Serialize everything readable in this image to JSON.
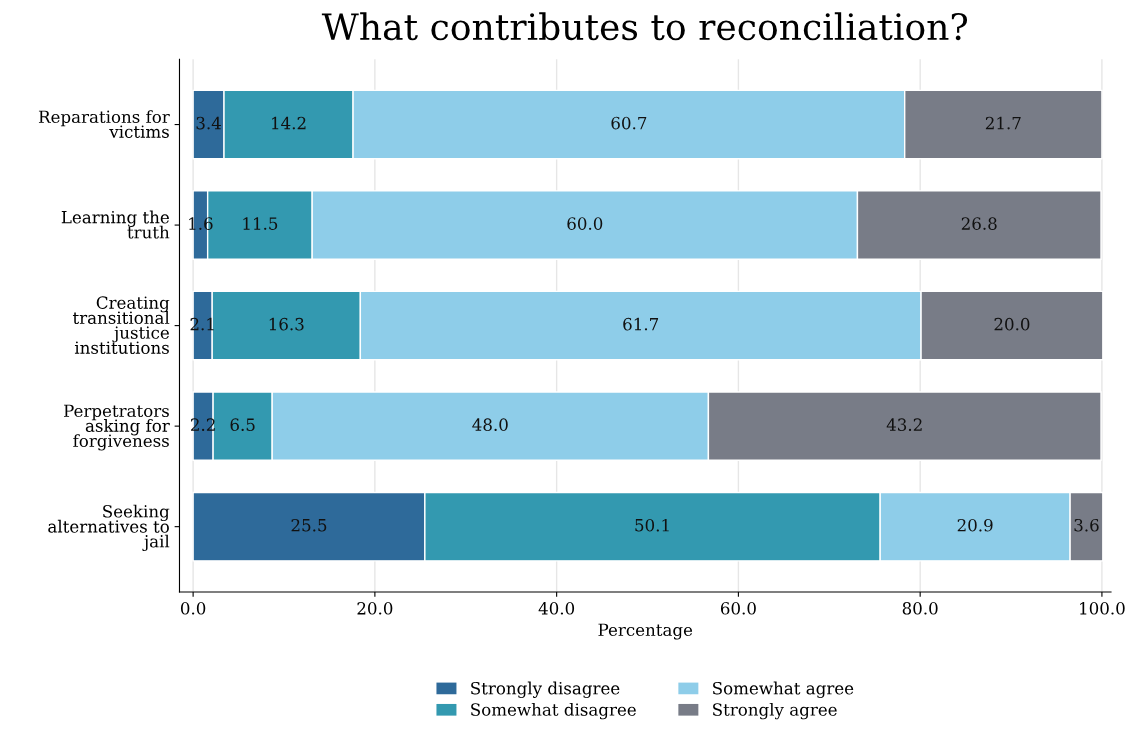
{
  "chart_data": {
    "type": "bar",
    "orientation": "horizontal",
    "stacked": true,
    "title": "What contributes to reconciliation?",
    "xlabel": "Percentage",
    "categories": [
      "Reparations for\nvictims",
      "Learning the\ntruth",
      "Creating\ntransitional\njustice\ninstitutions",
      "Perpetrators\nasking for\nforgiveness",
      "Seeking\nalternatives to\njail"
    ],
    "series": [
      {
        "name": "Strongly disagree",
        "color": "#2e6a9a",
        "values": [
          3.4,
          1.6,
          2.1,
          2.2,
          25.5
        ],
        "value_labels": [
          "3.4",
          "1.6",
          "2.1",
          "2.2",
          "25.5"
        ]
      },
      {
        "name": "Somewhat disagree",
        "color": "#3399b0",
        "values": [
          14.2,
          11.5,
          16.3,
          6.5,
          50.1
        ],
        "value_labels": [
          "14.2",
          "11.5",
          "16.3",
          "6.5",
          "50.1"
        ]
      },
      {
        "name": "Somewhat agree",
        "color": "#8ecde9",
        "values": [
          60.7,
          60.0,
          61.7,
          48.0,
          20.9
        ],
        "value_labels": [
          "60.7",
          "60.0",
          "61.7",
          "48.0",
          "20.9"
        ]
      },
      {
        "name": "Strongly agree",
        "color": "#787c87",
        "values": [
          21.7,
          26.8,
          20.0,
          43.2,
          3.6
        ],
        "value_labels": [
          "21.7",
          "26.8",
          "20.0",
          "43.2",
          "3.6"
        ]
      }
    ],
    "xlim": [
      -1.5,
      101
    ],
    "xticks": [
      {
        "value": 0,
        "label": "0.0"
      },
      {
        "value": 20,
        "label": "20.0"
      },
      {
        "value": 40,
        "label": "40.0"
      },
      {
        "value": 60,
        "label": "60.0"
      },
      {
        "value": 80,
        "label": "80.0"
      },
      {
        "value": 100,
        "label": "100.0"
      }
    ],
    "grid": "x",
    "legend": "bottom"
  }
}
